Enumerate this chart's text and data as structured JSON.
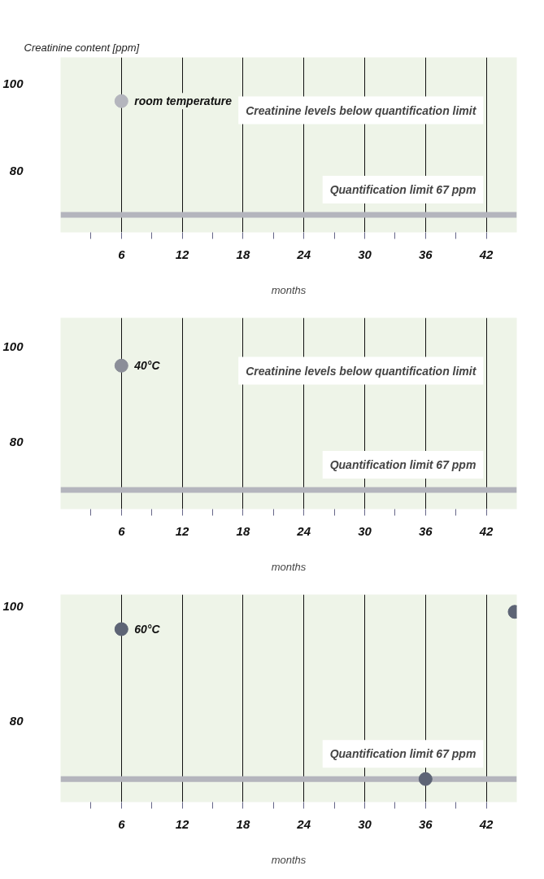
{
  "chart_data": [
    {
      "type": "scatter",
      "ylabel": "Creatinine content [ppm]",
      "xlabel": "months",
      "xlim": [
        0,
        45
      ],
      "ylim": [
        66,
        106
      ],
      "xticks": [
        {
          "value": 3,
          "label": null
        },
        6,
        {
          "value": 9,
          "label": null
        },
        12,
        {
          "value": 15,
          "label": null
        },
        18,
        {
          "value": 21,
          "label": null
        },
        24,
        {
          "value": 27,
          "label": null
        },
        30,
        {
          "value": 33,
          "label": null
        },
        36,
        {
          "value": 39,
          "label": null
        },
        42
      ],
      "yticks": [
        80,
        100
      ],
      "grid": "x",
      "marker": "circle",
      "series": [
        {
          "name": "room temperature",
          "color": "#b4b5bd",
          "x": [
            6
          ],
          "values": [
            96
          ]
        }
      ],
      "ref_lines": [
        {
          "axis": "y",
          "value": 70,
          "label": "Quantification limit 67 ppm",
          "color": "#b4b5bd"
        }
      ],
      "annotations": [
        "Creatinine levels below quantification limit"
      ]
    },
    {
      "type": "scatter",
      "xlabel": "months",
      "xlim": [
        0,
        45
      ],
      "ylim": [
        66,
        106
      ],
      "xticks": [
        {
          "value": 3,
          "label": null
        },
        6,
        {
          "value": 9,
          "label": null
        },
        12,
        {
          "value": 15,
          "label": null
        },
        18,
        {
          "value": 21,
          "label": null
        },
        24,
        {
          "value": 27,
          "label": null
        },
        30,
        {
          "value": 33,
          "label": null
        },
        36,
        {
          "value": 39,
          "label": null
        },
        42
      ],
      "yticks": [
        80,
        100
      ],
      "grid": "x",
      "marker": "circle",
      "series": [
        {
          "name": "40°C",
          "color": "#8b8e98",
          "x": [
            6
          ],
          "values": [
            96
          ]
        }
      ],
      "ref_lines": [
        {
          "axis": "y",
          "value": 70,
          "label": "Quantification limit 67 ppm",
          "color": "#b4b5bd"
        }
      ],
      "annotations": [
        "Creatinine levels below quantification limit"
      ]
    },
    {
      "type": "scatter",
      "xlabel": "months",
      "xlim": [
        0,
        45
      ],
      "ylim": [
        66,
        102
      ],
      "xticks": [
        {
          "value": 3,
          "label": null
        },
        6,
        {
          "value": 9,
          "label": null
        },
        12,
        {
          "value": 15,
          "label": null
        },
        18,
        {
          "value": 21,
          "label": null
        },
        24,
        {
          "value": 27,
          "label": null
        },
        30,
        {
          "value": 33,
          "label": null
        },
        36,
        {
          "value": 39,
          "label": null
        },
        42
      ],
      "yticks": [
        80,
        100
      ],
      "grid": "x",
      "marker": "circle",
      "series": [
        {
          "name": "60°C",
          "color": "#5d6475",
          "x": [
            6,
            36,
            44.8
          ],
          "values": [
            96,
            70,
            99
          ]
        }
      ],
      "ref_lines": [
        {
          "axis": "y",
          "value": 70,
          "label": "Quantification limit 67 ppm",
          "color": "#b4b5bd"
        }
      ]
    }
  ]
}
